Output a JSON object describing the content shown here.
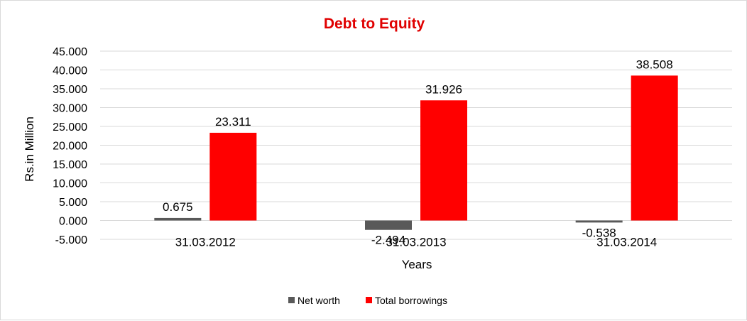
{
  "chart_data": {
    "type": "bar",
    "title": "Debt to Equity",
    "xlabel": "Years",
    "ylabel": "Rs.in Million",
    "categories": [
      "31.03.2012",
      "31.03.2013",
      "31.03.2014"
    ],
    "series": [
      {
        "name": "Net worth",
        "values": [
          0.675,
          -2.494,
          -0.538
        ],
        "labels": [
          "0.675",
          "-2.494",
          "-0.538"
        ],
        "color": "#595959"
      },
      {
        "name": "Total borrowings",
        "values": [
          23.311,
          31.926,
          38.508
        ],
        "labels": [
          "23.311",
          "31.926",
          "38.508"
        ],
        "color": "#ff0000"
      }
    ],
    "ylim": [
      -5,
      45
    ],
    "yticks": [
      -5,
      0,
      5,
      10,
      15,
      20,
      25,
      30,
      35,
      40,
      45
    ],
    "ytick_labels": [
      "-5.000",
      "0.000",
      "5.000",
      "10.000",
      "15.000",
      "20.000",
      "25.000",
      "30.000",
      "35.000",
      "40.000",
      "45.000"
    ],
    "grid": true,
    "legend_position": "bottom",
    "title_color": "#e00000"
  }
}
